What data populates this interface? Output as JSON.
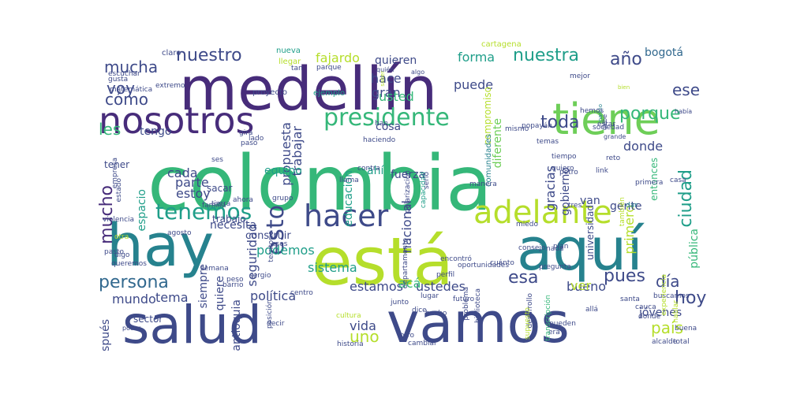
{
  "palette": {
    "dark_purple": "#472c7a",
    "indigo": "#3e4a89",
    "blue": "#31688e",
    "teal": "#26828e",
    "green_teal": "#1f9e89",
    "green": "#35b779",
    "light_green": "#6ece58",
    "lime": "#b5de2b",
    "yellow": "#fde725",
    "deep_purple": "#440154"
  },
  "words": [
    "colombia",
    "medellín",
    "hay",
    "está",
    "aquí",
    "vamos",
    "salud",
    "tiene",
    "nosotros",
    "adelante",
    "hacer",
    "presidente",
    "esto",
    "tenemos",
    "mucho",
    "persona",
    "hoy",
    "nuestra",
    "ciudad",
    "año",
    "nuestro",
    "porque",
    "toda",
    "pues",
    "esa",
    "mucha",
    "cómo",
    "voy",
    "les",
    "país",
    "día",
    "ese",
    "fajardo",
    "uno",
    "forma",
    "propuesta",
    "seguridad",
    "bogotá",
    "hace",
    "gran",
    "puede",
    "usted",
    "quieren",
    "sistema",
    "educación",
    "trabajar",
    "equipo",
    "gracias",
    "gobierno",
    "donde",
    "entonces",
    "pública",
    "primero",
    "gente",
    "van",
    "ustedes",
    "estamos",
    "nacional",
    "política",
    "antioquia",
    "quiere",
    "después",
    "mundo",
    "tema",
    "sector",
    "vida",
    "bueno",
    "ver",
    "jóvenes",
    "parte",
    "estoy",
    "cada",
    "tengo",
    "espacio",
    "cosa",
    "ahí",
    "acá",
    "fuerza",
    "podemos",
    "diferente",
    "compromiso",
    "comunidades",
    "universidad",
    "siempre",
    "sacar",
    "necesita",
    "construir",
    "trabajo",
    "tener",
    "claro",
    "nueva",
    "llegar",
    "tan",
    "parque",
    "quién",
    "algo",
    "cartagena",
    "saber",
    "ejemplo",
    "proyecto",
    "mejor",
    "bien",
    "nariño",
    "popayán",
    "debe",
    "mismo",
    "estar",
    "había",
    "grande",
    "sociedad",
    "haciendo",
    "tiempo",
    "quiero",
    "reto",
    "link",
    "petro",
    "tierra",
    "ahora",
    "grupo",
    "llama",
    "contra",
    "polarización",
    "capacidad",
    "serio",
    "primera",
    "casa",
    "tres",
    "dar",
    "familia",
    "violencia",
    "agosto",
    "pasto",
    "digo",
    "semana",
    "queremos",
    "sergio",
    "peso",
    "barrio",
    "poder",
    "decir",
    "posición",
    "centro",
    "junto",
    "lugar",
    "futuro",
    "cultura",
    "dice",
    "hecho",
    "historia",
    "cambiar",
    "otro",
    "desarrollo",
    "supuesto",
    "pueden",
    "era",
    "allá",
    "cauca",
    "santa",
    "buscamos",
    "transcripción",
    "hablar",
    "donde",
    "buena",
    "alcalde",
    "total",
    "miedo",
    "plan",
    "nada",
    "consejo",
    "problema",
    "biblioteca",
    "oportunidades",
    "perfil",
    "departamento",
    "pregunta",
    "cuánto",
    "encontró",
    "manera",
    "hemos",
    "escuchar",
    "gusta",
    "extremo",
    "matemática",
    "empresa",
    "estado",
    "gira",
    "lado",
    "pasó",
    "ses",
    "han",
    "territorio",
    "esos",
    "otra",
    "también",
    "experiencia",
    "temas",
    "transformar",
    "cuenta"
  ]
}
